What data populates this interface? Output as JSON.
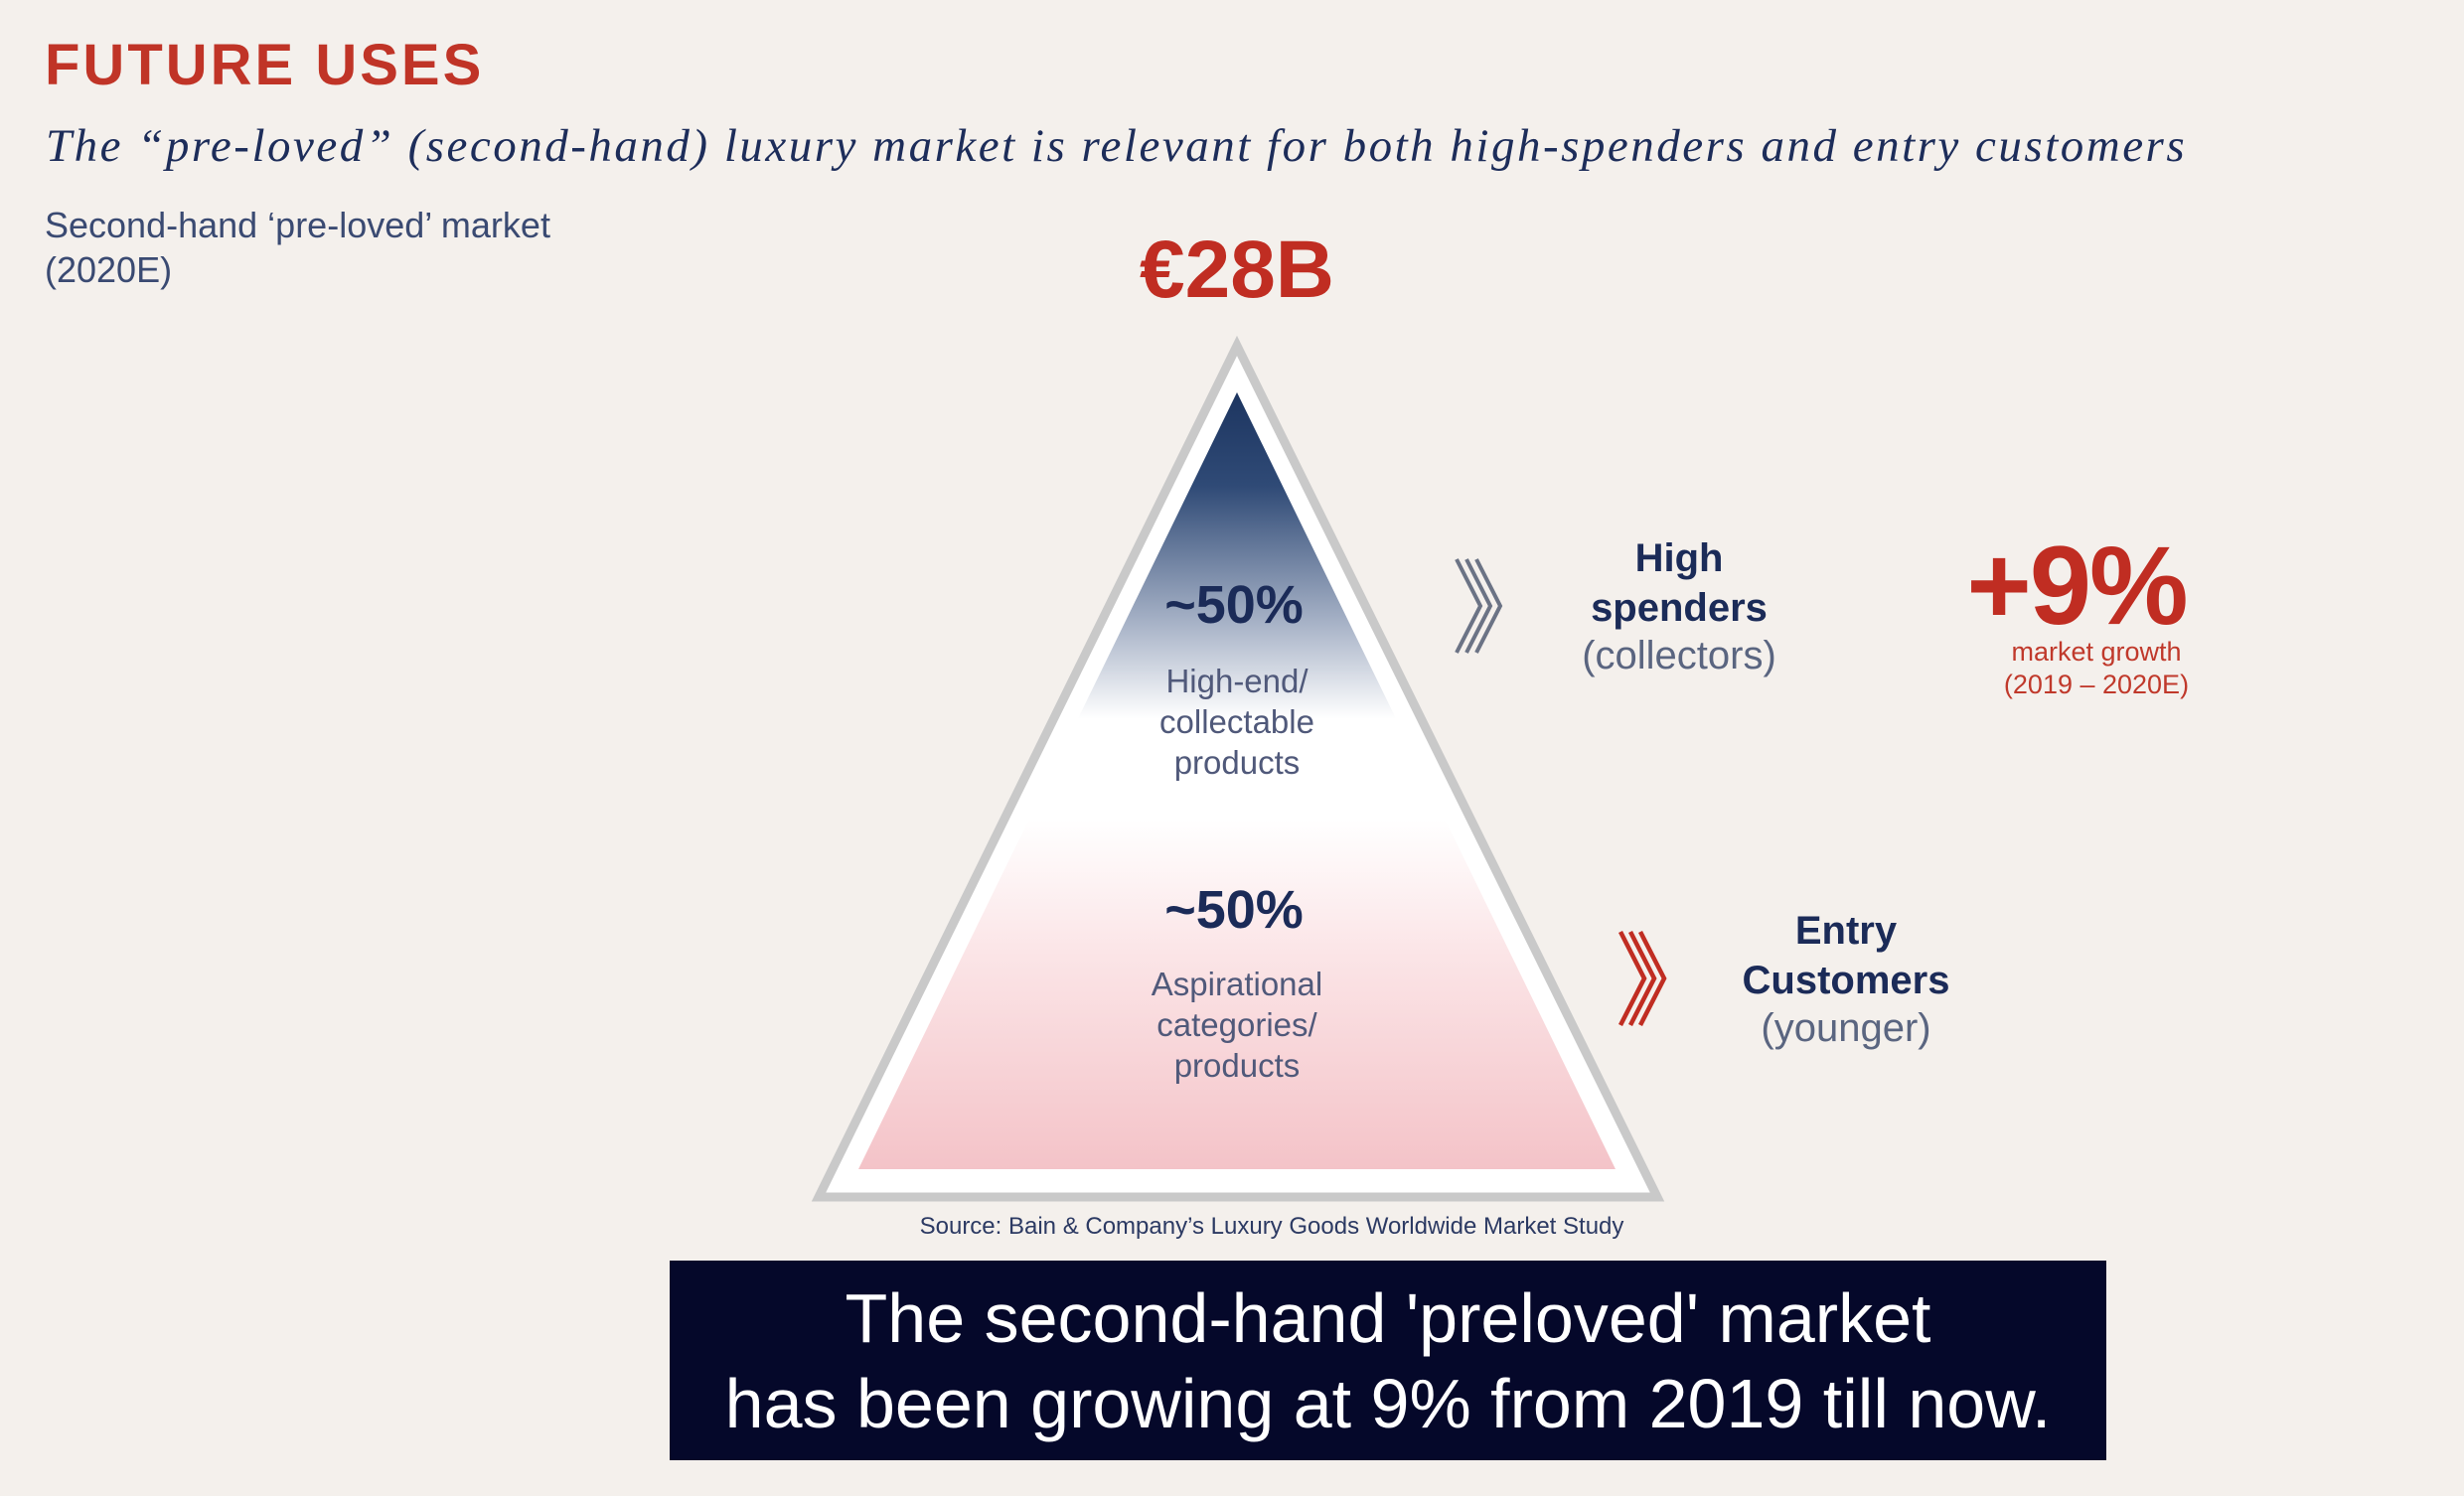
{
  "header": {
    "title": "FUTURE USES",
    "subtitle": "The “pre-loved” (second-hand) luxury market is relevant for both high-spenders and entry customers"
  },
  "market_label": "Second-hand ‘pre-loved’ market (2020E)",
  "pyramid": {
    "total": "€28B",
    "segments": [
      {
        "percent": "~50%",
        "description_lines": [
          "High-end/",
          "collectable",
          "products"
        ]
      },
      {
        "percent": "~50%",
        "description_lines": [
          "Aspirational",
          "categories/",
          "products"
        ]
      }
    ]
  },
  "groups": [
    {
      "title_lines": [
        "High",
        "spenders"
      ],
      "subtitle": "(collectors)",
      "arrow_icon": "triple-chevron-right-icon",
      "arrow_color": "#6b7385"
    },
    {
      "title_lines": [
        "Entry",
        "Customers"
      ],
      "subtitle": "(younger)",
      "arrow_icon": "triple-chevron-right-icon",
      "arrow_color": "#c02d22"
    }
  ],
  "growth": {
    "value": "+9%",
    "label_lines": [
      "market growth",
      "(2019 – 2020E)"
    ]
  },
  "source": "Source: Bain & Company’s Luxury Goods Worldwide Market Study",
  "caption": {
    "lines": [
      "The second-hand 'preloved' market",
      "has been growing at 9% from 2019 till now."
    ]
  },
  "colors": {
    "background": "#f4f0ec",
    "accent_red": "#c02d22",
    "navy": "#1b2b58",
    "pyramid_top": "#1d3560",
    "pyramid_bottom": "#f4c3c8",
    "caption_bg": "#05082a"
  }
}
